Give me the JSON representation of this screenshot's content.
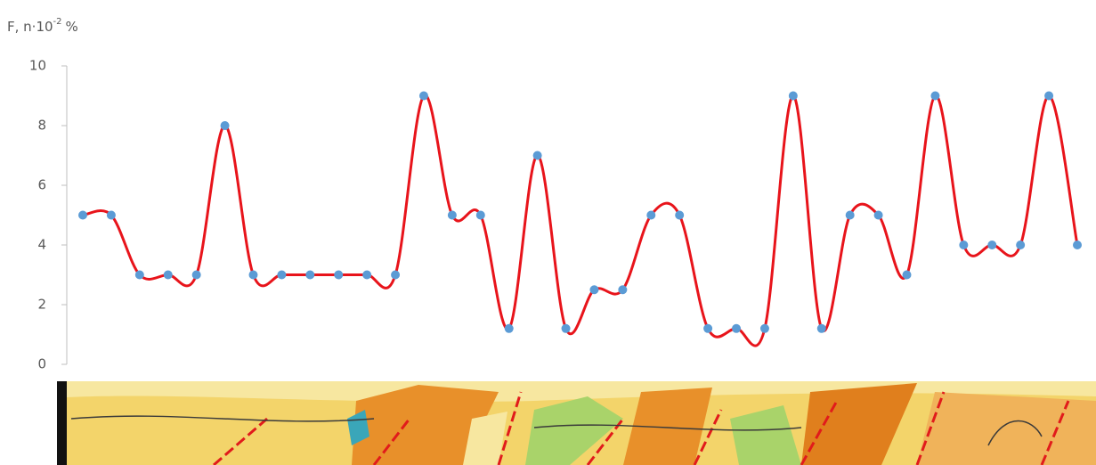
{
  "chart_data": {
    "type": "line",
    "ylabel": {
      "base": "F, n·10",
      "sup": "-2",
      "unit": "%"
    },
    "values": [
      5,
      5,
      3,
      3,
      3,
      8,
      3,
      3,
      3,
      3,
      3,
      3,
      9,
      5,
      5,
      1.2,
      7,
      1.2,
      2.5,
      2.5,
      5,
      5,
      1.2,
      1.2,
      1.2,
      9,
      1.2,
      5,
      5,
      3,
      9,
      4,
      4,
      4,
      9,
      4
    ],
    "line_color": "#e8141b",
    "marker_color": "#5b9bd5",
    "ylim": [
      0,
      10
    ],
    "yticks": [
      0,
      2,
      4,
      6,
      8,
      10
    ]
  }
}
